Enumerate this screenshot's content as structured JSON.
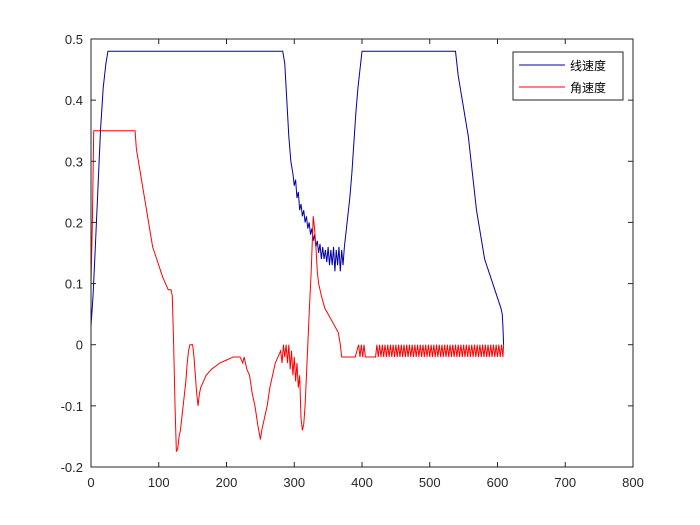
{
  "chart_data": {
    "type": "line",
    "title": "",
    "xlabel": "",
    "ylabel": "",
    "xlim": [
      0,
      800
    ],
    "ylim": [
      -0.2,
      0.5
    ],
    "xticks": [
      "0",
      "100",
      "200",
      "300",
      "400",
      "500",
      "600",
      "700",
      "800"
    ],
    "yticks": [
      "-0.2",
      "-0.1",
      "0",
      "0.1",
      "0.2",
      "0.3",
      "0.4",
      "0.5"
    ],
    "grid": false,
    "legend_position": "top-right",
    "series": [
      {
        "name": "线速度",
        "color": "#0000a8",
        "points": [
          [
            0,
            0.03
          ],
          [
            3,
            0.08
          ],
          [
            6,
            0.15
          ],
          [
            10,
            0.25
          ],
          [
            14,
            0.35
          ],
          [
            18,
            0.42
          ],
          [
            22,
            0.46
          ],
          [
            25,
            0.48
          ],
          [
            283,
            0.48
          ],
          [
            286,
            0.46
          ],
          [
            289,
            0.4
          ],
          [
            292,
            0.34
          ],
          [
            295,
            0.3
          ],
          [
            298,
            0.28
          ],
          [
            300,
            0.26
          ],
          [
            302,
            0.27
          ],
          [
            304,
            0.24
          ],
          [
            306,
            0.25
          ],
          [
            308,
            0.22
          ],
          [
            310,
            0.23
          ],
          [
            312,
            0.21
          ],
          [
            314,
            0.22
          ],
          [
            316,
            0.2
          ],
          [
            318,
            0.21
          ],
          [
            320,
            0.19
          ],
          [
            322,
            0.2
          ],
          [
            324,
            0.18
          ],
          [
            326,
            0.19
          ],
          [
            328,
            0.17
          ],
          [
            330,
            0.18
          ],
          [
            332,
            0.16
          ],
          [
            334,
            0.17
          ],
          [
            336,
            0.15
          ],
          [
            338,
            0.165
          ],
          [
            340,
            0.14
          ],
          [
            342,
            0.16
          ],
          [
            344,
            0.14
          ],
          [
            346,
            0.155
          ],
          [
            348,
            0.135
          ],
          [
            350,
            0.16
          ],
          [
            352,
            0.13
          ],
          [
            354,
            0.155
          ],
          [
            356,
            0.13
          ],
          [
            358,
            0.16
          ],
          [
            360,
            0.12
          ],
          [
            362,
            0.155
          ],
          [
            364,
            0.13
          ],
          [
            366,
            0.16
          ],
          [
            368,
            0.12
          ],
          [
            370,
            0.155
          ],
          [
            372,
            0.13
          ],
          [
            374,
            0.16
          ],
          [
            376,
            0.18
          ],
          [
            378,
            0.2
          ],
          [
            380,
            0.22
          ],
          [
            382,
            0.24
          ],
          [
            385,
            0.28
          ],
          [
            388,
            0.33
          ],
          [
            391,
            0.38
          ],
          [
            394,
            0.42
          ],
          [
            397,
            0.45
          ],
          [
            400,
            0.48
          ],
          [
            538,
            0.48
          ],
          [
            540,
            0.46
          ],
          [
            542,
            0.44
          ],
          [
            545,
            0.42
          ],
          [
            548,
            0.4
          ],
          [
            551,
            0.38
          ],
          [
            554,
            0.36
          ],
          [
            557,
            0.34
          ],
          [
            560,
            0.31
          ],
          [
            563,
            0.28
          ],
          [
            566,
            0.25
          ],
          [
            569,
            0.22
          ],
          [
            572,
            0.2
          ],
          [
            575,
            0.18
          ],
          [
            578,
            0.16
          ],
          [
            581,
            0.14
          ],
          [
            584,
            0.13
          ],
          [
            587,
            0.12
          ],
          [
            590,
            0.11
          ],
          [
            593,
            0.1
          ],
          [
            596,
            0.09
          ],
          [
            599,
            0.08
          ],
          [
            602,
            0.07
          ],
          [
            605,
            0.06
          ],
          [
            607,
            0.05
          ],
          [
            608,
            0.03
          ],
          [
            609,
            0.0
          ]
        ]
      },
      {
        "name": "角速度",
        "color": "#ff0000",
        "points": [
          [
            0,
            0.1
          ],
          [
            2,
            0.2
          ],
          [
            4,
            0.35
          ],
          [
            65,
            0.35
          ],
          [
            67,
            0.32
          ],
          [
            70,
            0.3
          ],
          [
            73,
            0.28
          ],
          [
            76,
            0.26
          ],
          [
            79,
            0.24
          ],
          [
            82,
            0.22
          ],
          [
            85,
            0.2
          ],
          [
            88,
            0.18
          ],
          [
            91,
            0.16
          ],
          [
            94,
            0.15
          ],
          [
            97,
            0.14
          ],
          [
            100,
            0.13
          ],
          [
            103,
            0.12
          ],
          [
            106,
            0.11
          ],
          [
            110,
            0.1
          ],
          [
            114,
            0.09
          ],
          [
            118,
            0.09
          ],
          [
            120,
            0.08
          ],
          [
            122,
            0.0
          ],
          [
            124,
            -0.1
          ],
          [
            126,
            -0.175
          ],
          [
            128,
            -0.17
          ],
          [
            130,
            -0.15
          ],
          [
            132,
            -0.14
          ],
          [
            134,
            -0.12
          ],
          [
            136,
            -0.1
          ],
          [
            138,
            -0.08
          ],
          [
            140,
            -0.06
          ],
          [
            142,
            -0.03
          ],
          [
            144,
            -0.01
          ],
          [
            146,
            0.0
          ],
          [
            150,
            0.0
          ],
          [
            152,
            -0.02
          ],
          [
            154,
            -0.05
          ],
          [
            156,
            -0.08
          ],
          [
            158,
            -0.1
          ],
          [
            160,
            -0.08
          ],
          [
            162,
            -0.07
          ],
          [
            166,
            -0.06
          ],
          [
            170,
            -0.05
          ],
          [
            174,
            -0.045
          ],
          [
            178,
            -0.04
          ],
          [
            184,
            -0.035
          ],
          [
            190,
            -0.03
          ],
          [
            200,
            -0.025
          ],
          [
            210,
            -0.02
          ],
          [
            220,
            -0.02
          ],
          [
            224,
            -0.03
          ],
          [
            226,
            -0.02
          ],
          [
            230,
            -0.04
          ],
          [
            234,
            -0.05
          ],
          [
            238,
            -0.08
          ],
          [
            242,
            -0.1
          ],
          [
            246,
            -0.13
          ],
          [
            250,
            -0.155
          ],
          [
            252,
            -0.14
          ],
          [
            256,
            -0.12
          ],
          [
            260,
            -0.1
          ],
          [
            264,
            -0.07
          ],
          [
            268,
            -0.05
          ],
          [
            272,
            -0.03
          ],
          [
            276,
            -0.02
          ],
          [
            280,
            -0.01
          ],
          [
            282,
            -0.03
          ],
          [
            284,
            0.0
          ],
          [
            286,
            -0.02
          ],
          [
            288,
            0.0
          ],
          [
            290,
            -0.03
          ],
          [
            292,
            0.0
          ],
          [
            294,
            -0.04
          ],
          [
            296,
            -0.01
          ],
          [
            298,
            -0.05
          ],
          [
            300,
            -0.02
          ],
          [
            302,
            -0.06
          ],
          [
            304,
            -0.03
          ],
          [
            306,
            -0.07
          ],
          [
            308,
            -0.05
          ],
          [
            310,
            -0.12
          ],
          [
            312,
            -0.14
          ],
          [
            314,
            -0.13
          ],
          [
            316,
            -0.1
          ],
          [
            318,
            -0.05
          ],
          [
            320,
            0.0
          ],
          [
            322,
            0.05
          ],
          [
            325,
            0.12
          ],
          [
            328,
            0.21
          ],
          [
            330,
            0.19
          ],
          [
            332,
            0.16
          ],
          [
            334,
            0.12
          ],
          [
            336,
            0.1
          ],
          [
            340,
            0.08
          ],
          [
            345,
            0.06
          ],
          [
            350,
            0.05
          ],
          [
            355,
            0.04
          ],
          [
            360,
            0.03
          ],
          [
            365,
            0.02
          ],
          [
            368,
            0.0
          ],
          [
            370,
            -0.02
          ],
          [
            372,
            -0.02
          ],
          [
            380,
            -0.02
          ],
          [
            390,
            -0.02
          ],
          [
            395,
            0.0
          ],
          [
            397,
            -0.02
          ],
          [
            399,
            0.0
          ],
          [
            401,
            -0.02
          ],
          [
            403,
            0.0
          ],
          [
            405,
            -0.02
          ],
          [
            420,
            -0.02
          ],
          [
            422,
            0.0
          ],
          [
            424,
            -0.02
          ],
          [
            426,
            0.0
          ],
          [
            428,
            -0.02
          ],
          [
            430,
            0.0
          ],
          [
            432,
            -0.02
          ],
          [
            434,
            0.0
          ],
          [
            436,
            -0.02
          ],
          [
            438,
            0.0
          ],
          [
            440,
            -0.02
          ],
          [
            442,
            0.0
          ],
          [
            444,
            -0.02
          ],
          [
            446,
            0.0
          ],
          [
            448,
            -0.02
          ],
          [
            450,
            0.0
          ],
          [
            452,
            -0.02
          ],
          [
            454,
            0.0
          ],
          [
            456,
            -0.02
          ],
          [
            458,
            0.0
          ],
          [
            460,
            -0.02
          ],
          [
            462,
            0.0
          ],
          [
            464,
            -0.02
          ],
          [
            466,
            0.0
          ],
          [
            468,
            -0.02
          ],
          [
            470,
            0.0
          ],
          [
            472,
            -0.02
          ],
          [
            474,
            0.0
          ],
          [
            476,
            -0.02
          ],
          [
            478,
            0.0
          ],
          [
            480,
            -0.02
          ],
          [
            482,
            0.0
          ],
          [
            484,
            -0.02
          ],
          [
            486,
            0.0
          ],
          [
            488,
            -0.02
          ],
          [
            490,
            0.0
          ],
          [
            492,
            -0.02
          ],
          [
            494,
            0.0
          ],
          [
            496,
            -0.02
          ],
          [
            498,
            0.0
          ],
          [
            500,
            -0.02
          ],
          [
            502,
            0.0
          ],
          [
            504,
            -0.02
          ],
          [
            506,
            0.0
          ],
          [
            508,
            -0.02
          ],
          [
            510,
            0.0
          ],
          [
            512,
            -0.02
          ],
          [
            514,
            0.0
          ],
          [
            516,
            -0.02
          ],
          [
            518,
            0.0
          ],
          [
            520,
            -0.02
          ],
          [
            522,
            0.0
          ],
          [
            524,
            -0.02
          ],
          [
            526,
            0.0
          ],
          [
            528,
            -0.02
          ],
          [
            530,
            0.0
          ],
          [
            532,
            -0.02
          ],
          [
            534,
            0.0
          ],
          [
            536,
            -0.02
          ],
          [
            538,
            0.0
          ],
          [
            540,
            -0.02
          ],
          [
            542,
            0.0
          ],
          [
            544,
            -0.02
          ],
          [
            546,
            0.0
          ],
          [
            548,
            -0.02
          ],
          [
            550,
            0.0
          ],
          [
            552,
            -0.02
          ],
          [
            554,
            0.0
          ],
          [
            556,
            -0.02
          ],
          [
            558,
            0.0
          ],
          [
            560,
            -0.02
          ],
          [
            562,
            0.0
          ],
          [
            564,
            -0.02
          ],
          [
            566,
            0.0
          ],
          [
            568,
            -0.02
          ],
          [
            570,
            0.0
          ],
          [
            572,
            -0.02
          ],
          [
            574,
            0.0
          ],
          [
            576,
            -0.02
          ],
          [
            578,
            0.0
          ],
          [
            580,
            -0.02
          ],
          [
            582,
            0.0
          ],
          [
            584,
            -0.02
          ],
          [
            586,
            0.0
          ],
          [
            588,
            -0.02
          ],
          [
            590,
            0.0
          ],
          [
            592,
            -0.02
          ],
          [
            594,
            0.0
          ],
          [
            596,
            -0.02
          ],
          [
            598,
            0.0
          ],
          [
            600,
            -0.02
          ],
          [
            602,
            0.0
          ],
          [
            604,
            -0.02
          ],
          [
            606,
            0.0
          ],
          [
            608,
            -0.02
          ],
          [
            609,
            0.0
          ]
        ]
      }
    ]
  }
}
